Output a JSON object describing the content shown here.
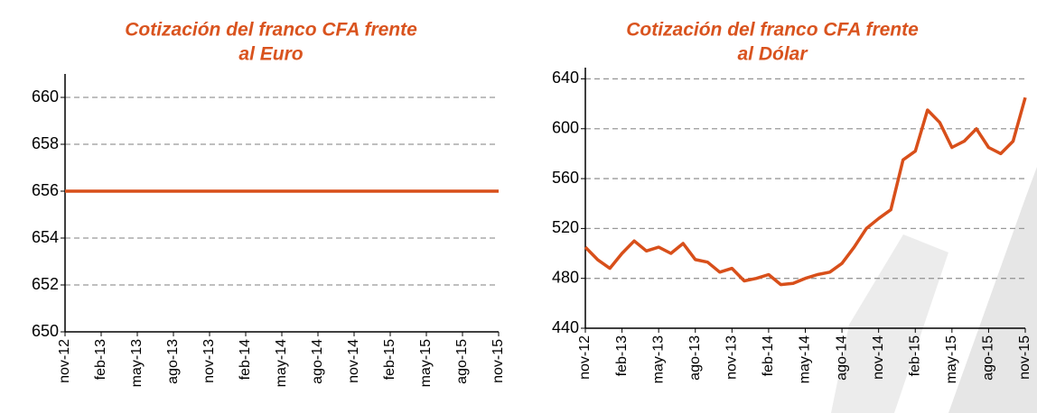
{
  "chart_data": [
    {
      "type": "line",
      "title": [
        "Cotización del franco CFA frente",
        "al Euro"
      ],
      "categories": [
        "nov-12",
        null,
        null,
        "feb-13",
        null,
        null,
        "may-13",
        null,
        null,
        "ago-13",
        null,
        null,
        "nov-13",
        null,
        null,
        "feb-14",
        null,
        null,
        "may-14",
        null,
        null,
        "ago-14",
        null,
        null,
        "nov-14",
        null,
        null,
        "feb-15",
        null,
        null,
        "may-15",
        null,
        null,
        "ago-15",
        null,
        null,
        "nov-15"
      ],
      "series": [
        {
          "color": "#d84f1a",
          "values": [
            656,
            656,
            656,
            656,
            656,
            656,
            656,
            656,
            656,
            656,
            656,
            656,
            656,
            656,
            656,
            656,
            656,
            656,
            656,
            656,
            656,
            656,
            656,
            656,
            656,
            656,
            656,
            656,
            656,
            656,
            656,
            656,
            656,
            656,
            656,
            656,
            656
          ]
        }
      ],
      "ylim": [
        650,
        661
      ],
      "yticks": [
        650,
        652,
        654,
        656,
        658,
        660
      ],
      "grid": true
    },
    {
      "type": "line",
      "title": [
        "Cotización del franco CFA frente",
        "al Dólar"
      ],
      "categories": [
        "nov-12",
        null,
        null,
        "feb-13",
        null,
        null,
        "may-13",
        null,
        null,
        "ago-13",
        null,
        null,
        "nov-13",
        null,
        null,
        "feb-14",
        null,
        null,
        "may-14",
        null,
        null,
        "ago-14",
        null,
        null,
        "nov-14",
        null,
        null,
        "feb-15",
        null,
        null,
        "may-15",
        null,
        null,
        "ago-15",
        null,
        null,
        "nov-15"
      ],
      "series": [
        {
          "color": "#d84f1a",
          "values": [
            505,
            495,
            488,
            500,
            510,
            502,
            505,
            500,
            508,
            495,
            493,
            485,
            488,
            478,
            480,
            483,
            475,
            476,
            480,
            483,
            485,
            492,
            505,
            520,
            528,
            535,
            575,
            582,
            615,
            605,
            585,
            590,
            600,
            585,
            580,
            590,
            625
          ]
        }
      ],
      "ylim": [
        440,
        649
      ],
      "yticks": [
        440,
        480,
        520,
        560,
        600,
        640
      ],
      "grid": true
    }
  ]
}
